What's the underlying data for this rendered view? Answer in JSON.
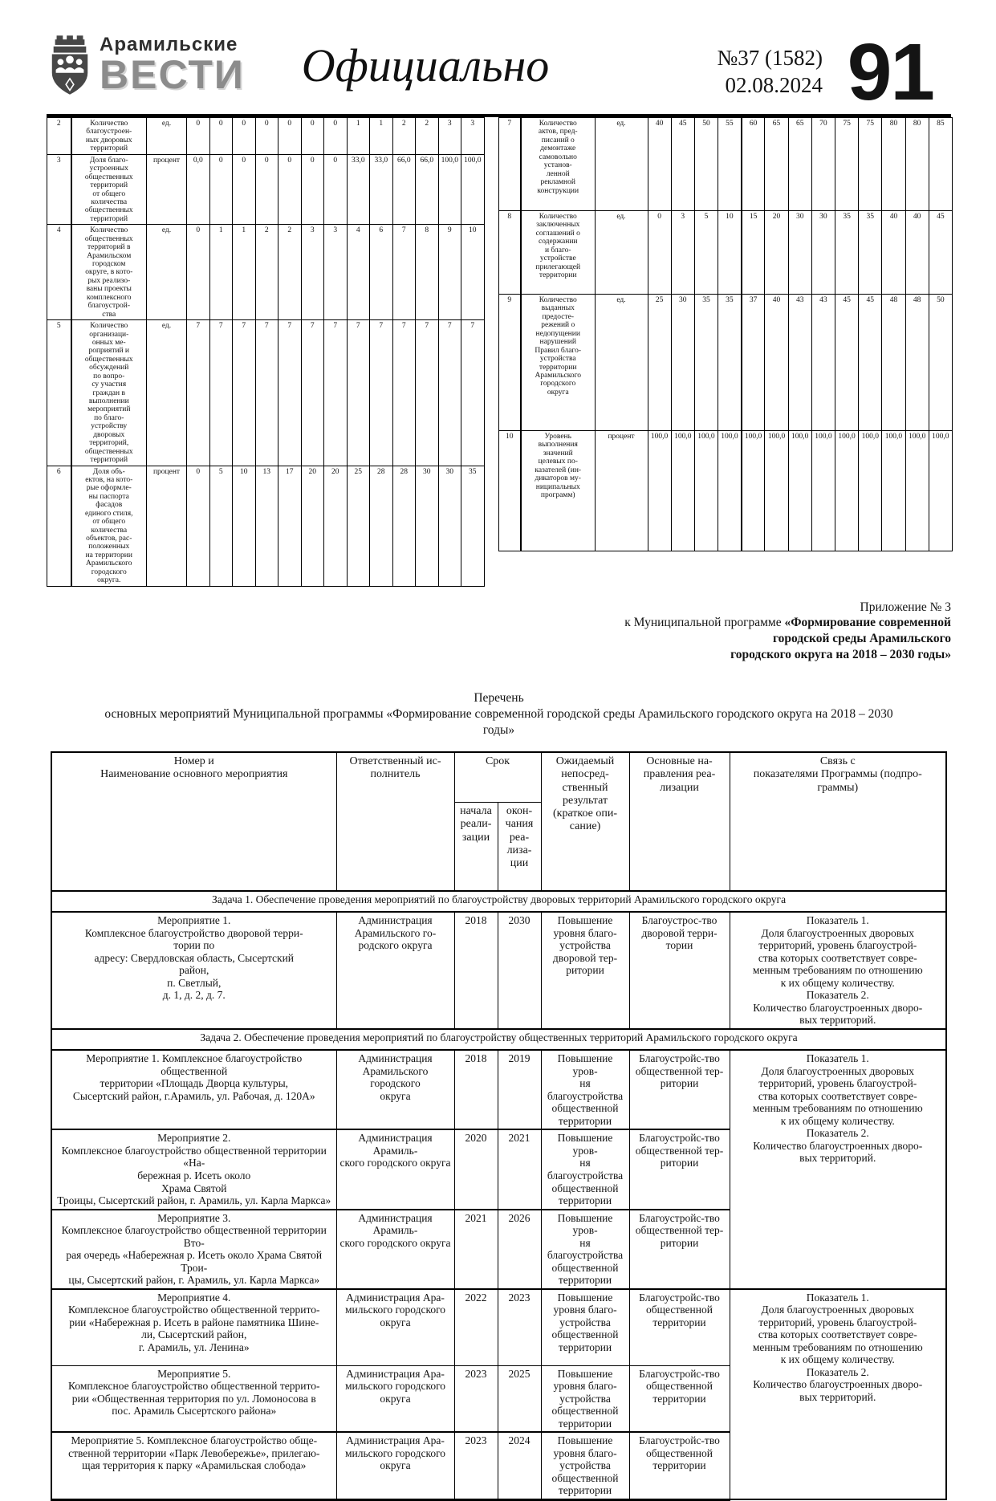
{
  "header": {
    "brand_top": "Арамильские",
    "brand_bottom": "ВЕСТИ",
    "section_title": "Официально",
    "issue": "№37 (1582)",
    "date": "02.08.2024",
    "page_number": "91",
    "emblem_icon": "aramil-coat-of-arms",
    "colors": {
      "brand_gray": "#8c8c8c",
      "ink": "#141414"
    }
  },
  "indicators_left": {
    "rows": [
      {
        "num": "2",
        "name": "Количество\nблагоустроен-\nных дворовых\nтерриторий",
        "unit": "ед.",
        "values": [
          "0",
          "0",
          "0",
          "0",
          "0",
          "0",
          "0",
          "1",
          "1",
          "2",
          "2",
          "3",
          "3"
        ]
      },
      {
        "num": "3",
        "name": "Доля благо-\nустроенных\nобщественных\nтерриторий\nот общего\nколичества\nобщественных\nтерриторий",
        "unit": "процент",
        "values": [
          "0,0",
          "0",
          "0",
          "0",
          "0",
          "0",
          "0",
          "33,0",
          "33,0",
          "66,0",
          "66,0",
          "100,0",
          "100,0"
        ]
      },
      {
        "num": "4",
        "name": "Количество\nобщественных\nтерриторий в\nАрамильском\nгородском\nокруге, в кото-\nрых реализо-\nваны проекты\nкомплексного\nблагоустрой-\nства",
        "unit": "ед.",
        "values": [
          "0",
          "1",
          "1",
          "2",
          "2",
          "3",
          "3",
          "4",
          "6",
          "7",
          "8",
          "9",
          "10"
        ]
      },
      {
        "num": "5",
        "name": "Количество\nорганизаци-\nонных ме-\nроприятий и\nобщественных\nобсуждений\nпо вопро-\nсу участия\nграждан в\nвыполнении\nмероприятий\nпо благо-\nустройству\nдворовых\nтерриторий,\nобщественных\nтерриторий",
        "unit": "ед.",
        "values": [
          "7",
          "7",
          "7",
          "7",
          "7",
          "7",
          "7",
          "7",
          "7",
          "7",
          "7",
          "7",
          "7"
        ]
      },
      {
        "num": "6",
        "name": "Доля объ-\nектов, на кото-\nрые оформле-\nны паспорта\nфасадов\nединого стиля,\nот общего\nколичества\nобъектов, рас-\nположенных\nна территории\nАрамильского\nгородского\nокруга.",
        "unit": "процент",
        "values": [
          "0",
          "5",
          "10",
          "13",
          "17",
          "20",
          "20",
          "25",
          "28",
          "28",
          "30",
          "30",
          "35"
        ]
      }
    ]
  },
  "indicators_right": {
    "rows": [
      {
        "num": "7",
        "name": "Количество\nактов, пред-\nписаний о\nдемонтаже\nсамовольно\nустанов-\nленной\nрекламной\nконструкции",
        "unit": "ед.",
        "values": [
          "40",
          "45",
          "50",
          "55",
          "60",
          "65",
          "65",
          "70",
          "75",
          "75",
          "80",
          "80",
          "85"
        ]
      },
      {
        "num": "8",
        "name": "Количество\nзаключенных\nсоглашений о\nсодержании\nи благо-\nустройстве\nприлегающей\nтерритории",
        "unit": "ед.",
        "values": [
          "0",
          "3",
          "5",
          "10",
          "15",
          "20",
          "30",
          "30",
          "35",
          "35",
          "40",
          "40",
          "45"
        ]
      },
      {
        "num": "9",
        "name": "Количество\nвыданных\nпредосте-\nрежений о\nнедопущении\nнарушений\nПравил благо-\nустройства\nтерритории\nАрамильского\nгородского\nокруга",
        "unit": "ед.",
        "values": [
          "25",
          "30",
          "35",
          "35",
          "37",
          "40",
          "43",
          "43",
          "45",
          "45",
          "48",
          "48",
          "50"
        ]
      },
      {
        "num": "10",
        "name": "Уровень\nвыполнения\nзначений\nцелевых по-\nказателей (ин-\nдикаторов му-\nниципальных\nпрограмм)",
        "unit": "процент",
        "values": [
          "100,0",
          "100,0",
          "100,0",
          "100,0",
          "100,0",
          "100,0",
          "100,0",
          "100,0",
          "100,0",
          "100,0",
          "100,0",
          "100,0",
          "100,0"
        ]
      }
    ]
  },
  "appendix": {
    "line1": "Приложение № 3",
    "line2_prefix": "к Муниципальной программе ",
    "line2_bold": "«Формирование современной",
    "line3_bold": "городской среды Арамильского",
    "line4_bold": "городского округа на 2018 – 2030 годы»"
  },
  "list_heading": {
    "line1": "Перечень",
    "line2": "основных мероприятий Муниципальной программы «Формирование современной городской среды Арамильского городского округа на 2018 – 2030",
    "line3": "годы»"
  },
  "main_table": {
    "header": {
      "col_name": "Номер и\nНаименование основного мероприятия",
      "col_executor": "Ответственный ис-\nполнитель",
      "col_term": "Срок",
      "col_term_start": "начала\nреали-\nзации",
      "col_term_end": "окон-\nчания\nреа-\nлиза-\nции",
      "col_result": "Ожидаемый\nнепосред-\nственный\nрезультат\n(краткое опи-\nсание)",
      "col_directions": "Основные на-\nправления реа-\nлизации",
      "col_link": "Связь с\nпоказателями Программы (подпро-\nграммы)"
    },
    "task1": "Задача 1. Обеспечение проведения мероприятий по благоустройству дворовых территорий Арамильского городского округа",
    "task2": "Задача 2. Обеспечение проведения мероприятий по благоустройству общественных территорий Арамильского городского округа",
    "link_text": "Показатель 1.\nДоля благоустроенных дворовых\nтерриторий, уровень благоустрой-\nства которых соответствует совре-\nменным требованиям по отношению\nк их общему количеству.\nПоказатель 2.\nКоличество благоустроенных дворо-\nвых территорий.",
    "rows": [
      {
        "name": "Мероприятие 1.\nКомплексное благоустройство дворовой терри-\nтории по\nадресу: Свердловская область, Сысертский\nрайон,\nп. Светлый,\nд. 1, д. 2, д. 7.",
        "executor": "Администрация\nАрамильского го-\nродского округа",
        "start": "2018",
        "end": "2030",
        "result": "Повышение\nуровня благо-\nустройства\nдворовой тер-\nритории",
        "directions": "Благоустрос-тво\nдворовой терри-\nтории"
      },
      {
        "name": "Мероприятие 1.  Комплексное благоустройство общественной\nтерритории «Площадь Дворца культуры,\nСысертский район, г.Арамиль, ул. Рабочая, д. 120А»",
        "executor": "Администрация\nАрамильского городского\nокруга",
        "start": "2018",
        "end": "2019",
        "result": "Повышение уров-\nня благоустройства\nобщественной\nтерритории",
        "directions": "Благоустройс-тво\nобщественной тер-\nритории"
      },
      {
        "name": "Мероприятие 2.\nКомплексное благоустройство общественной территории «На-\nбережная р. Исеть около\nХрама Святой\nТроицы, Сысертский район, г. Арамиль, ул. Карла Маркса»",
        "executor": "Администрация Арамиль-\nского городского округа",
        "start": "2020",
        "end": "2021",
        "result": "Повышение уров-\nня благоустройства\nобщественной\nтерритории",
        "directions": "Благоустройс-тво\nобщественной тер-\nритории"
      },
      {
        "name": "Мероприятие 3.\nКомплексное благоустройство общественной территории Вто-\nрая очередь «Набережная р. Исеть около Храма Святой Трои-\nцы, Сысертский район, г. Арамиль, ул. Карла Маркса»",
        "executor": "Администрация Арамиль-\nского городского округа",
        "start": "2021",
        "end": "2026",
        "result": "Повышение уров-\nня благоустройства\nобщественной\nтерритории",
        "directions": "Благоустройс-тво\nобщественной тер-\nритории"
      },
      {
        "name": "Мероприятие 4.\nКомплексное благоустройство общественной террито-\nрии «Набережная р. Исеть в районе памятника Шине-\nли, Сысертский район,\nг. Арамиль, ул. Ленина»",
        "executor": "Администрация Ара-\nмильского городского\nокруга",
        "start": "2022",
        "end": "2023",
        "result": "Повышение\nуровня благо-\nустройства\nобщественной\nтерритории",
        "directions": "Благоустройс-тво\nобщественной\nтерритории"
      },
      {
        "name": "Мероприятие 5.\nКомплексное благоустройство общественной террито-\nрии «Общественная территория по ул. Ломоносова в\nпос. Арамиль Сысертского района»",
        "executor": "Администрация Ара-\nмильского городского\nокруга",
        "start": "2023",
        "end": "2025",
        "result": "Повышение\nуровня благо-\nустройства\nобщественной\nтерритории",
        "directions": "Благоустройс-тво\nобщественной\nтерритории"
      },
      {
        "name": "Мероприятие 5. Комплексное благоустройство обще-\nственной территории «Парк Левобережье», прилегаю-\nщая территория к парку «Арамильская слобода»",
        "executor": "Администрация Ара-\nмильского городского\nокруга",
        "start": "2023",
        "end": "2024",
        "result": "Повышение\nуровня благо-\nустройства\nобщественной\nтерритории",
        "directions": "Благоустройс-тво\nобщественной\nтерритории"
      }
    ]
  }
}
